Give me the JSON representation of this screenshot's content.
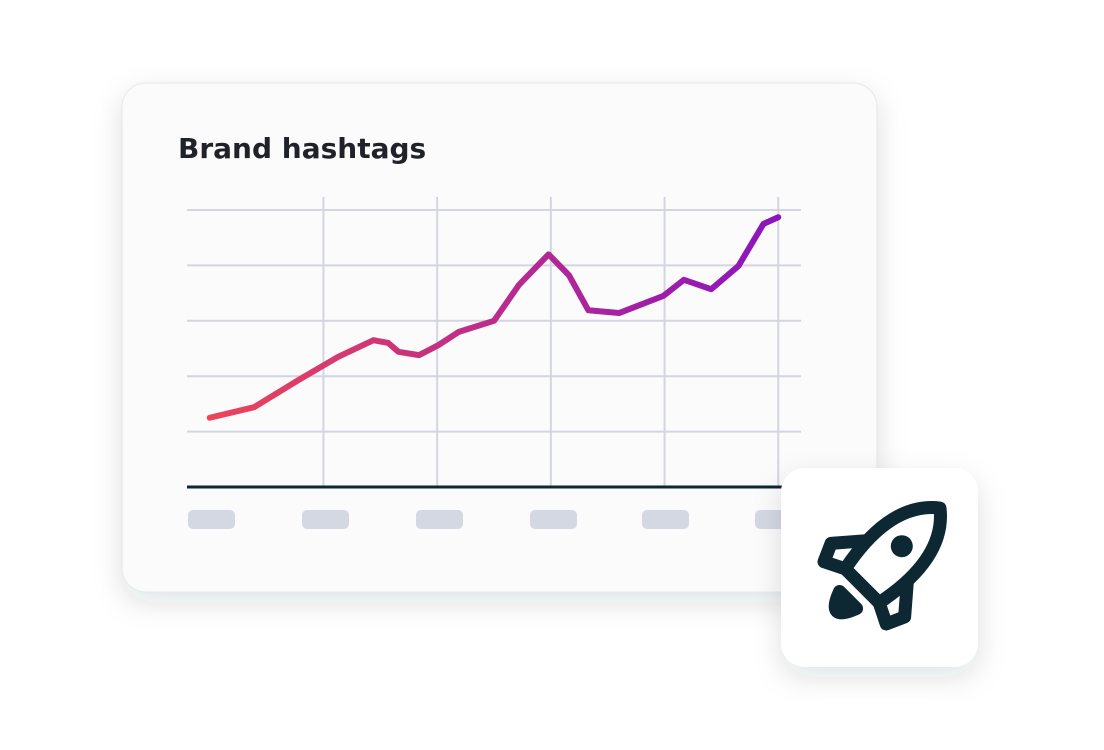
{
  "chart_data": {
    "type": "line",
    "title": "Brand hashtags",
    "x": [
      0,
      0.39,
      0.78,
      1.13,
      1.44,
      1.57,
      1.66,
      1.84,
      2.01,
      2.19,
      2.5,
      2.72,
      2.98,
      3.16,
      3.33,
      3.6,
      3.99,
      4.17,
      4.41,
      4.65,
      4.87,
      5.0
    ],
    "series": [
      {
        "colors": [
          "#ec4458",
          "#8a14bf"
        ],
        "values": [
          1.25,
          1.44,
          1.93,
          2.35,
          2.65,
          2.6,
          2.44,
          2.38,
          2.56,
          2.8,
          3.0,
          3.65,
          4.2,
          3.82,
          3.19,
          3.14,
          3.45,
          3.74,
          3.57,
          3.99,
          4.75,
          4.87
        ]
      }
    ],
    "xlim": [
      -0.2,
      5.2
    ],
    "ylim": [
      0,
      5
    ],
    "xticks": [
      1,
      2,
      3,
      4,
      5
    ],
    "yticks": [
      1,
      2,
      3,
      4,
      5
    ],
    "grid": true
  }
}
